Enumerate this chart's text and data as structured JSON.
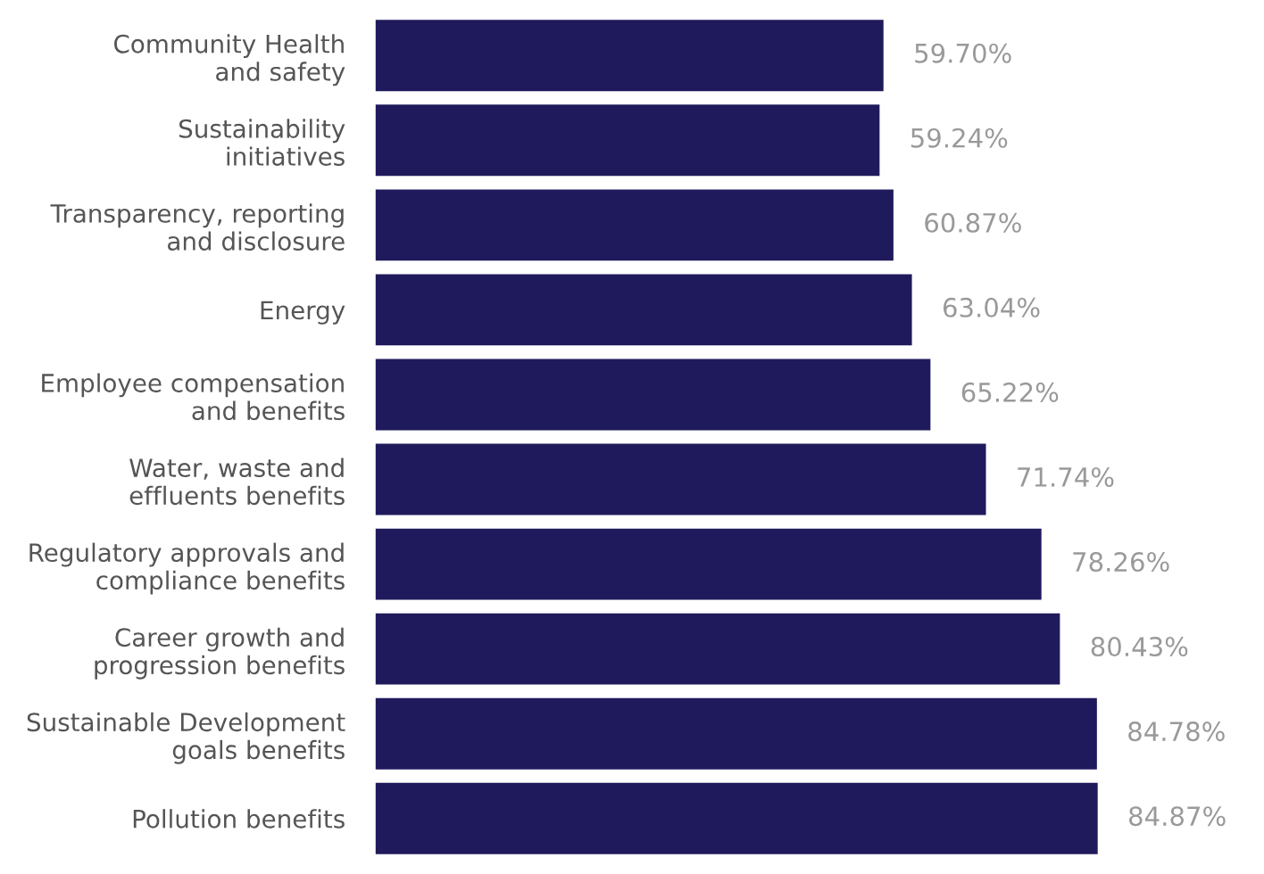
{
  "chart_data": {
    "type": "bar",
    "orientation": "horizontal",
    "categories": [
      "Community Health\nand safety",
      "Sustainability\ninitiatives",
      "Transparency, reporting\nand disclosure",
      "Energy",
      "Employee compensation\nand benefits",
      "Water, waste and\neffluents benefits",
      "Regulatory approvals and\ncompliance benefits",
      "Career growth and\nprogression benefits",
      "Sustainable Development\ngoals benefits",
      "Pollution benefits"
    ],
    "series": [
      {
        "color": "#1f1a5c",
        "values": [
          59.7,
          59.24,
          60.87,
          63.04,
          65.22,
          71.74,
          78.26,
          80.43,
          84.78,
          84.87
        ],
        "value_labels": [
          "59.70%",
          "59.24%",
          "60.87%",
          "63.04%",
          "65.22%",
          "71.74%",
          "78.26%",
          "80.43%",
          "84.78%",
          "84.87%"
        ]
      }
    ],
    "grid": false,
    "legend": false,
    "tick_labels": "y"
  }
}
